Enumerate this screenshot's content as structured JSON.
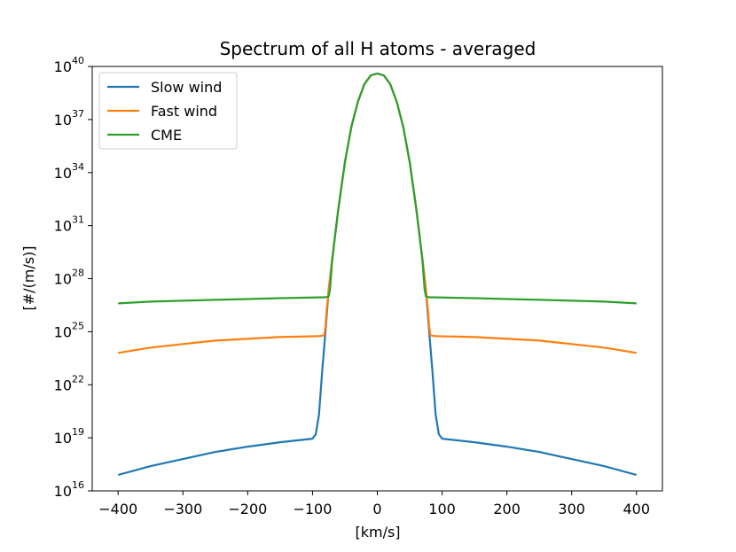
{
  "chart_data": {
    "type": "line",
    "title": "Spectrum of all H atoms - averaged",
    "xlabel": "[km/s]",
    "ylabel": "[#/(m/s)]",
    "xlim": [
      -440,
      440
    ],
    "ylim_log10": [
      16,
      40
    ],
    "y_scale": "log",
    "grid": false,
    "legend_position": "top-left",
    "xticks": [
      -400,
      -300,
      -200,
      -100,
      0,
      100,
      200,
      300,
      400
    ],
    "xtick_labels": [
      "−400",
      "−300",
      "−200",
      "−100",
      "0",
      "100",
      "200",
      "300",
      "400"
    ],
    "yticks_log10": [
      16,
      19,
      22,
      25,
      28,
      31,
      34,
      37,
      40
    ],
    "ytick_base": "10",
    "ytick_exponents": [
      "16",
      "19",
      "22",
      "25",
      "28",
      "31",
      "34",
      "37",
      "40"
    ],
    "peak": {
      "x": 0,
      "log10_y": 39.6
    },
    "series": [
      {
        "name": "Slow wind",
        "color": "#1f77b4",
        "wings_log10": [
          [
            0,
            39.6
          ],
          [
            10,
            39.5
          ],
          [
            20,
            39.0
          ],
          [
            30,
            38.0
          ],
          [
            40,
            36.6
          ],
          [
            50,
            34.6
          ],
          [
            60,
            32.0
          ],
          [
            70,
            29.0
          ],
          [
            75,
            27.4
          ],
          [
            80,
            25.0
          ],
          [
            85,
            22.8
          ],
          [
            90,
            20.3
          ],
          [
            95,
            19.2
          ],
          [
            100,
            18.95
          ],
          [
            150,
            18.75
          ],
          [
            200,
            18.5
          ],
          [
            250,
            18.2
          ],
          [
            300,
            17.8
          ],
          [
            350,
            17.4
          ],
          [
            400,
            16.9
          ]
        ]
      },
      {
        "name": "Fast wind",
        "color": "#ff7f0e",
        "wings_log10": [
          [
            0,
            39.6
          ],
          [
            10,
            39.5
          ],
          [
            20,
            39.0
          ],
          [
            30,
            38.0
          ],
          [
            40,
            36.6
          ],
          [
            50,
            34.6
          ],
          [
            60,
            32.0
          ],
          [
            70,
            29.0
          ],
          [
            75,
            27.4
          ],
          [
            78,
            26.3
          ],
          [
            80,
            25.3
          ],
          [
            82,
            24.8
          ],
          [
            90,
            24.75
          ],
          [
            150,
            24.7
          ],
          [
            200,
            24.6
          ],
          [
            250,
            24.5
          ],
          [
            300,
            24.3
          ],
          [
            350,
            24.1
          ],
          [
            400,
            23.8
          ]
        ]
      },
      {
        "name": "CME",
        "color": "#2ca02c",
        "wings_log10": [
          [
            0,
            39.6
          ],
          [
            10,
            39.5
          ],
          [
            20,
            39.0
          ],
          [
            30,
            38.0
          ],
          [
            40,
            36.6
          ],
          [
            50,
            34.6
          ],
          [
            60,
            32.0
          ],
          [
            65,
            30.5
          ],
          [
            70,
            28.9
          ],
          [
            73,
            27.4
          ],
          [
            75,
            27.0
          ],
          [
            80,
            26.95
          ],
          [
            150,
            26.9
          ],
          [
            200,
            26.85
          ],
          [
            250,
            26.8
          ],
          [
            300,
            26.75
          ],
          [
            350,
            26.7
          ],
          [
            400,
            26.6
          ]
        ]
      }
    ]
  }
}
